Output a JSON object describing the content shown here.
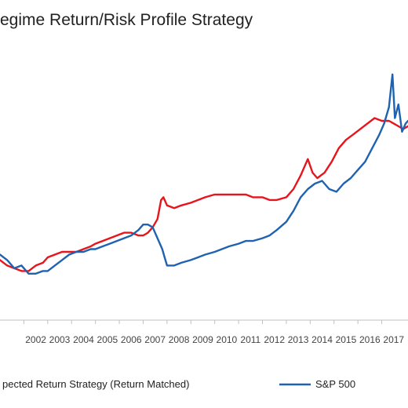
{
  "chart_data": {
    "type": "line",
    "title": "egime Return/Risk Profile Strategy",
    "xlabel": "",
    "ylabel": "",
    "x_tick_labels": [
      "2002",
      "2003",
      "2004",
      "2005",
      "2006",
      "2007",
      "2008",
      "2009",
      "2010",
      "2011",
      "2012",
      "2013",
      "2014",
      "2015",
      "2016",
      "2017"
    ],
    "xlim": [
      2001.0,
      2018.1
    ],
    "ylim": [
      0,
      100
    ],
    "grid": false,
    "legend_position": "bottom",
    "series": [
      {
        "name": "pected Return Strategy (Return Matched)",
        "color": "#e8141c",
        "points": [
          [
            2001.0,
            22
          ],
          [
            2001.3,
            20
          ],
          [
            2001.6,
            19
          ],
          [
            2001.9,
            18
          ],
          [
            2002.2,
            18
          ],
          [
            2002.5,
            20
          ],
          [
            2002.8,
            21
          ],
          [
            2003.0,
            23
          ],
          [
            2003.3,
            24
          ],
          [
            2003.6,
            25
          ],
          [
            2003.9,
            25
          ],
          [
            2004.2,
            25
          ],
          [
            2004.5,
            26
          ],
          [
            2004.8,
            27
          ],
          [
            2005.0,
            28
          ],
          [
            2005.3,
            29
          ],
          [
            2005.6,
            30
          ],
          [
            2005.9,
            31
          ],
          [
            2006.2,
            32
          ],
          [
            2006.5,
            32
          ],
          [
            2006.8,
            31
          ],
          [
            2007.0,
            31
          ],
          [
            2007.2,
            32
          ],
          [
            2007.4,
            34
          ],
          [
            2007.6,
            37
          ],
          [
            2007.75,
            44
          ],
          [
            2007.85,
            45
          ],
          [
            2008.0,
            42
          ],
          [
            2008.3,
            41
          ],
          [
            2008.6,
            42
          ],
          [
            2009.0,
            43
          ],
          [
            2009.3,
            44
          ],
          [
            2009.6,
            45
          ],
          [
            2010.0,
            46
          ],
          [
            2010.3,
            46
          ],
          [
            2010.6,
            46
          ],
          [
            2011.0,
            46
          ],
          [
            2011.3,
            46
          ],
          [
            2011.6,
            45
          ],
          [
            2012.0,
            45
          ],
          [
            2012.3,
            44
          ],
          [
            2012.6,
            44
          ],
          [
            2013.0,
            45
          ],
          [
            2013.3,
            48
          ],
          [
            2013.6,
            53
          ],
          [
            2013.9,
            59
          ],
          [
            2014.1,
            54
          ],
          [
            2014.3,
            52
          ],
          [
            2014.6,
            54
          ],
          [
            2014.9,
            58
          ],
          [
            2015.2,
            63
          ],
          [
            2015.5,
            66
          ],
          [
            2015.8,
            68
          ],
          [
            2016.1,
            70
          ],
          [
            2016.4,
            72
          ],
          [
            2016.7,
            74
          ],
          [
            2017.0,
            73
          ],
          [
            2017.3,
            73
          ],
          [
            2017.5,
            72
          ],
          [
            2017.7,
            71
          ],
          [
            2017.9,
            70
          ],
          [
            2018.1,
            71
          ]
        ]
      },
      {
        "name": "S&P 500",
        "color": "#1f63b0",
        "points": [
          [
            2001.0,
            24
          ],
          [
            2001.3,
            22
          ],
          [
            2001.6,
            19
          ],
          [
            2001.9,
            20
          ],
          [
            2002.2,
            17
          ],
          [
            2002.5,
            17
          ],
          [
            2002.8,
            18
          ],
          [
            2003.0,
            18
          ],
          [
            2003.3,
            20
          ],
          [
            2003.6,
            22
          ],
          [
            2003.9,
            24
          ],
          [
            2004.2,
            25
          ],
          [
            2004.5,
            25
          ],
          [
            2004.8,
            26
          ],
          [
            2005.0,
            26
          ],
          [
            2005.3,
            27
          ],
          [
            2005.6,
            28
          ],
          [
            2005.9,
            29
          ],
          [
            2006.2,
            30
          ],
          [
            2006.5,
            31
          ],
          [
            2006.8,
            33
          ],
          [
            2007.0,
            35
          ],
          [
            2007.2,
            35
          ],
          [
            2007.4,
            34
          ],
          [
            2007.6,
            30
          ],
          [
            2007.8,
            26
          ],
          [
            2007.9,
            23
          ],
          [
            2008.0,
            20
          ],
          [
            2008.3,
            20
          ],
          [
            2008.6,
            21
          ],
          [
            2009.0,
            22
          ],
          [
            2009.3,
            23
          ],
          [
            2009.6,
            24
          ],
          [
            2010.0,
            25
          ],
          [
            2010.3,
            26
          ],
          [
            2010.6,
            27
          ],
          [
            2011.0,
            28
          ],
          [
            2011.3,
            29
          ],
          [
            2011.6,
            29
          ],
          [
            2012.0,
            30
          ],
          [
            2012.3,
            31
          ],
          [
            2012.6,
            33
          ],
          [
            2013.0,
            36
          ],
          [
            2013.3,
            40
          ],
          [
            2013.6,
            45
          ],
          [
            2013.9,
            48
          ],
          [
            2014.2,
            50
          ],
          [
            2014.5,
            51
          ],
          [
            2014.8,
            48
          ],
          [
            2015.1,
            47
          ],
          [
            2015.4,
            50
          ],
          [
            2015.7,
            52
          ],
          [
            2016.0,
            55
          ],
          [
            2016.3,
            58
          ],
          [
            2016.6,
            63
          ],
          [
            2016.9,
            68
          ],
          [
            2017.1,
            72
          ],
          [
            2017.3,
            78
          ],
          [
            2017.45,
            90
          ],
          [
            2017.55,
            74
          ],
          [
            2017.7,
            79
          ],
          [
            2017.85,
            69
          ],
          [
            2018.0,
            72
          ],
          [
            2018.1,
            73
          ]
        ]
      }
    ]
  }
}
